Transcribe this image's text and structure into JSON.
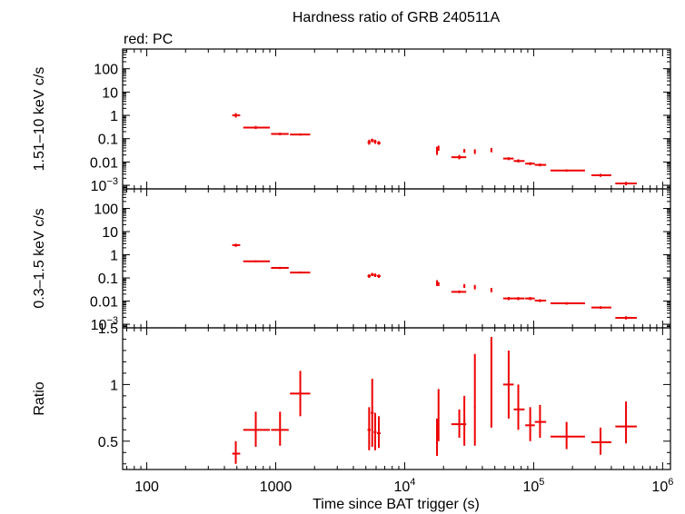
{
  "chart_data": {
    "type": "scatter",
    "title": "Hardness ratio of GRB 240511A",
    "legend_note": "red: PC",
    "xlabel": "Time since BAT trigger (s)",
    "x_scale": "log",
    "xlim": [
      65,
      1150000
    ],
    "x_ticks": [
      {
        "value": 100,
        "label": "100"
      },
      {
        "value": 1000,
        "label": "1000"
      },
      {
        "value": 10000,
        "label": "10",
        "exp": "4"
      },
      {
        "value": 100000,
        "label": "10",
        "exp": "5"
      },
      {
        "value": 1000000,
        "label": "10",
        "exp": "6"
      }
    ],
    "colors": {
      "series": "#ee0000",
      "axes": "#000000"
    },
    "panels": [
      {
        "id": "hard",
        "ylabel": "1.51–10 keV c/s",
        "y_scale": "log",
        "ylim": [
          0.0007,
          700
        ],
        "y_ticks": [
          {
            "value": 100,
            "label": "100"
          },
          {
            "value": 10,
            "label": "10"
          },
          {
            "value": 1,
            "label": "1"
          },
          {
            "value": 0.1,
            "label": "0.1"
          },
          {
            "value": 0.01,
            "label": "0.01"
          },
          {
            "value": 0.001,
            "label": "10",
            "exp": "−3"
          }
        ],
        "points": [
          {
            "x": 490,
            "xerr": [
              460,
              530
            ],
            "y": 1.0,
            "yerr": [
              0.8,
              1.25
            ]
          },
          {
            "x": 700,
            "xerr": [
              560,
              900
            ],
            "y": 0.3,
            "yerr": [
              0.26,
              0.35
            ]
          },
          {
            "x": 1080,
            "xerr": [
              920,
              1260
            ],
            "y": 0.16,
            "yerr": [
              0.14,
              0.18
            ]
          },
          {
            "x": 1550,
            "xerr": [
              1290,
              1850
            ],
            "y": 0.15,
            "yerr": [
              0.135,
              0.17
            ]
          },
          {
            "x": 5300,
            "xerr": [
              5150,
              5450
            ],
            "y": 0.07,
            "yerr": [
              0.055,
              0.09
            ]
          },
          {
            "x": 5600,
            "xerr": [
              5450,
              5750
            ],
            "y": 0.085,
            "yerr": [
              0.07,
              0.1
            ]
          },
          {
            "x": 5900,
            "xerr": [
              5750,
              6050
            ],
            "y": 0.075,
            "yerr": [
              0.06,
              0.09
            ]
          },
          {
            "x": 6300,
            "xerr": [
              6100,
              6500
            ],
            "y": 0.065,
            "yerr": [
              0.055,
              0.078
            ]
          },
          {
            "x": 17800,
            "xerr": [
              17600,
              18000
            ],
            "y": 0.03,
            "yerr": [
              0.02,
              0.045
            ]
          },
          {
            "x": 18300,
            "xerr": [
              18100,
              18500
            ],
            "y": 0.04,
            "yerr": [
              0.03,
              0.05
            ]
          },
          {
            "x": 26500,
            "xerr": [
              23000,
              30000
            ],
            "y": 0.016,
            "yerr": [
              0.013,
              0.02
            ]
          },
          {
            "x": 29000,
            "xerr": [
              28500,
              29500
            ],
            "y": 0.03,
            "yerr": [
              0.025,
              0.036
            ]
          },
          {
            "x": 35000,
            "xerr": [
              34500,
              35500
            ],
            "y": 0.028,
            "yerr": [
              0.022,
              0.035
            ]
          },
          {
            "x": 47000,
            "xerr": [
              46500,
              47500
            ],
            "y": 0.032,
            "yerr": [
              0.026,
              0.04
            ]
          },
          {
            "x": 64000,
            "xerr": [
              58000,
              70000
            ],
            "y": 0.014,
            "yerr": [
              0.012,
              0.016
            ]
          },
          {
            "x": 76000,
            "xerr": [
              70000,
              85000
            ],
            "y": 0.011,
            "yerr": [
              0.0095,
              0.013
            ]
          },
          {
            "x": 94000,
            "xerr": [
              86000,
              102000
            ],
            "y": 0.0085,
            "yerr": [
              0.0073,
              0.0098
            ]
          },
          {
            "x": 112000,
            "xerr": [
              102000,
              125000
            ],
            "y": 0.0075,
            "yerr": [
              0.0065,
              0.0086
            ]
          },
          {
            "x": 180000,
            "xerr": [
              135000,
              250000
            ],
            "y": 0.0043,
            "yerr": [
              0.0038,
              0.0048
            ]
          },
          {
            "x": 330000,
            "xerr": [
              280000,
              400000
            ],
            "y": 0.0027,
            "yerr": [
              0.0023,
              0.0031
            ]
          },
          {
            "x": 520000,
            "xerr": [
              430000,
              630000
            ],
            "y": 0.0012,
            "yerr": [
              0.001,
              0.0014
            ]
          }
        ]
      },
      {
        "id": "soft",
        "ylabel": "0.3–1.5 keV c/s",
        "y_scale": "log",
        "ylim": [
          0.0007,
          700
        ],
        "y_ticks": [
          {
            "value": 100,
            "label": "100"
          },
          {
            "value": 10,
            "label": "10"
          },
          {
            "value": 1,
            "label": "1"
          },
          {
            "value": 0.1,
            "label": "0.1"
          },
          {
            "value": 0.01,
            "label": "0.01"
          },
          {
            "value": 0.001,
            "label": "10",
            "exp": "−3"
          }
        ],
        "points": [
          {
            "x": 490,
            "xerr": [
              460,
              530
            ],
            "y": 2.6,
            "yerr": [
              2.2,
              3.0
            ]
          },
          {
            "x": 700,
            "xerr": [
              560,
              900
            ],
            "y": 0.52,
            "yerr": [
              0.47,
              0.57
            ]
          },
          {
            "x": 1080,
            "xerr": [
              920,
              1260
            ],
            "y": 0.27,
            "yerr": [
              0.24,
              0.3
            ]
          },
          {
            "x": 1550,
            "xerr": [
              1290,
              1850
            ],
            "y": 0.17,
            "yerr": [
              0.155,
              0.19
            ]
          },
          {
            "x": 5300,
            "xerr": [
              5150,
              5450
            ],
            "y": 0.12,
            "yerr": [
              0.1,
              0.145
            ]
          },
          {
            "x": 5600,
            "xerr": [
              5450,
              5750
            ],
            "y": 0.14,
            "yerr": [
              0.12,
              0.165
            ]
          },
          {
            "x": 5900,
            "xerr": [
              5750,
              6050
            ],
            "y": 0.13,
            "yerr": [
              0.11,
              0.155
            ]
          },
          {
            "x": 6300,
            "xerr": [
              6100,
              6500
            ],
            "y": 0.12,
            "yerr": [
              0.1,
              0.14
            ]
          },
          {
            "x": 17800,
            "xerr": [
              17600,
              18000
            ],
            "y": 0.06,
            "yerr": [
              0.045,
              0.08
            ]
          },
          {
            "x": 18300,
            "xerr": [
              18100,
              18500
            ],
            "y": 0.055,
            "yerr": [
              0.045,
              0.066
            ]
          },
          {
            "x": 26500,
            "xerr": [
              23000,
              30000
            ],
            "y": 0.025,
            "yerr": [
              0.022,
              0.029
            ]
          },
          {
            "x": 29000,
            "xerr": [
              28500,
              29500
            ],
            "y": 0.045,
            "yerr": [
              0.037,
              0.054
            ]
          },
          {
            "x": 35000,
            "xerr": [
              34500,
              35500
            ],
            "y": 0.04,
            "yerr": [
              0.032,
              0.05
            ]
          },
          {
            "x": 47000,
            "xerr": [
              46500,
              47500
            ],
            "y": 0.03,
            "yerr": [
              0.024,
              0.037
            ]
          },
          {
            "x": 64000,
            "xerr": [
              58000,
              70000
            ],
            "y": 0.013,
            "yerr": [
              0.011,
              0.015
            ]
          },
          {
            "x": 76000,
            "xerr": [
              70000,
              85000
            ],
            "y": 0.013,
            "yerr": [
              0.011,
              0.015
            ]
          },
          {
            "x": 94000,
            "xerr": [
              86000,
              102000
            ],
            "y": 0.013,
            "yerr": [
              0.011,
              0.015
            ]
          },
          {
            "x": 112000,
            "xerr": [
              102000,
              125000
            ],
            "y": 0.0105,
            "yerr": [
              0.009,
              0.012
            ]
          },
          {
            "x": 180000,
            "xerr": [
              135000,
              250000
            ],
            "y": 0.008,
            "yerr": [
              0.007,
              0.009
            ]
          },
          {
            "x": 330000,
            "xerr": [
              280000,
              400000
            ],
            "y": 0.0053,
            "yerr": [
              0.0046,
              0.006
            ]
          },
          {
            "x": 520000,
            "xerr": [
              430000,
              630000
            ],
            "y": 0.0019,
            "yerr": [
              0.0016,
              0.0022
            ]
          }
        ]
      },
      {
        "id": "ratio",
        "ylabel": "Ratio",
        "y_scale": "linear",
        "ylim": [
          0.25,
          1.5
        ],
        "y_ticks": [
          {
            "value": 1.5,
            "label": "1.5"
          },
          {
            "value": 1,
            "label": "1"
          },
          {
            "value": 0.5,
            "label": "0.5"
          }
        ],
        "points": [
          {
            "x": 490,
            "xerr": [
              460,
              530
            ],
            "y": 0.39,
            "yerr": [
              0.3,
              0.5
            ]
          },
          {
            "x": 700,
            "xerr": [
              560,
              900
            ],
            "y": 0.6,
            "yerr": [
              0.45,
              0.76
            ]
          },
          {
            "x": 1080,
            "xerr": [
              920,
              1260
            ],
            "y": 0.6,
            "yerr": [
              0.46,
              0.76
            ]
          },
          {
            "x": 1550,
            "xerr": [
              1290,
              1850
            ],
            "y": 0.92,
            "yerr": [
              0.72,
              1.12
            ]
          },
          {
            "x": 5300,
            "xerr": [
              5150,
              5450
            ],
            "y": 0.6,
            "yerr": [
              0.42,
              0.8
            ]
          },
          {
            "x": 5600,
            "xerr": [
              5450,
              5750
            ],
            "y": 0.75,
            "yerr": [
              0.45,
              1.05
            ]
          },
          {
            "x": 5900,
            "xerr": [
              5750,
              6050
            ],
            "y": 0.58,
            "yerr": [
              0.42,
              0.75
            ]
          },
          {
            "x": 6300,
            "xerr": [
              6100,
              6500
            ],
            "y": 0.57,
            "yerr": [
              0.44,
              0.72
            ]
          },
          {
            "x": 17800,
            "xerr": [
              17600,
              18000
            ],
            "y": 0.53,
            "yerr": [
              0.37,
              0.7
            ]
          },
          {
            "x": 18300,
            "xerr": [
              18100,
              18500
            ],
            "y": 0.73,
            "yerr": [
              0.5,
              0.96
            ]
          },
          {
            "x": 26500,
            "xerr": [
              23000,
              30000
            ],
            "y": 0.65,
            "yerr": [
              0.53,
              0.78
            ]
          },
          {
            "x": 29000,
            "xerr": [
              28500,
              29500
            ],
            "y": 0.68,
            "yerr": [
              0.46,
              0.9
            ]
          },
          {
            "x": 35000,
            "xerr": [
              34500,
              35500
            ],
            "y": 0.8,
            "yerr": [
              0.46,
              1.27
            ]
          },
          {
            "x": 47000,
            "xerr": [
              46500,
              47500
            ],
            "y": 1.08,
            "yerr": [
              0.62,
              1.42
            ]
          },
          {
            "x": 64000,
            "xerr": [
              58000,
              70000
            ],
            "y": 1.0,
            "yerr": [
              0.7,
              1.3
            ]
          },
          {
            "x": 76000,
            "xerr": [
              70000,
              85000
            ],
            "y": 0.78,
            "yerr": [
              0.6,
              1.0
            ]
          },
          {
            "x": 94000,
            "xerr": [
              86000,
              102000
            ],
            "y": 0.64,
            "yerr": [
              0.5,
              0.8
            ]
          },
          {
            "x": 112000,
            "xerr": [
              102000,
              125000
            ],
            "y": 0.67,
            "yerr": [
              0.53,
              0.82
            ]
          },
          {
            "x": 180000,
            "xerr": [
              135000,
              250000
            ],
            "y": 0.54,
            "yerr": [
              0.43,
              0.67
            ]
          },
          {
            "x": 330000,
            "xerr": [
              280000,
              400000
            ],
            "y": 0.49,
            "yerr": [
              0.38,
              0.62
            ]
          },
          {
            "x": 520000,
            "xerr": [
              430000,
              630000
            ],
            "y": 0.63,
            "yerr": [
              0.48,
              0.85
            ]
          }
        ]
      }
    ]
  }
}
